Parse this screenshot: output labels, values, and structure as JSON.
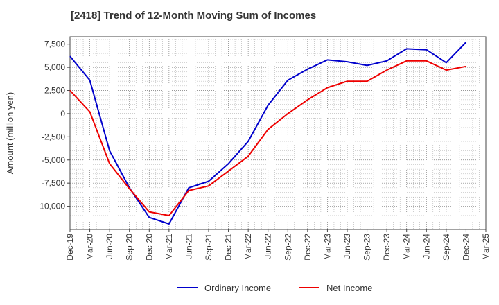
{
  "chart_data": {
    "type": "line",
    "title": "[2418]  Trend of 12-Month Moving Sum of Incomes",
    "ylabel": "Amount (million yen)",
    "xlabel": "",
    "categories": [
      "Dec-19",
      "Mar-20",
      "Jun-20",
      "Sep-20",
      "Dec-20",
      "Mar-21",
      "Jun-21",
      "Sep-21",
      "Dec-21",
      "Mar-22",
      "Jun-22",
      "Sep-22",
      "Dec-22",
      "Mar-23",
      "Jun-23",
      "Sep-23",
      "Dec-23",
      "Mar-24",
      "Jun-24",
      "Sep-24",
      "Dec-24",
      "Mar-25"
    ],
    "ylim": [
      -12500,
      8300
    ],
    "yticks": [
      -10000,
      -7500,
      -5000,
      -2500,
      0,
      2500,
      5000,
      7500
    ],
    "ytick_labels": [
      "-10,000",
      "-7,500",
      "-5,000",
      "-2,500",
      "0",
      "2,500",
      "5,000",
      "7,500"
    ],
    "grid": true,
    "legend_position": "bottom",
    "series": [
      {
        "name": "Ordinary Income",
        "color": "#0000cc",
        "values": [
          6200,
          3600,
          -4000,
          -8000,
          -11200,
          -11900,
          -8000,
          -7300,
          -5400,
          -3000,
          900,
          3600,
          4800,
          5800,
          5600,
          5200,
          5700,
          7000,
          6900,
          5500,
          7700,
          null
        ]
      },
      {
        "name": "Net Income",
        "color": "#ee0000",
        "values": [
          2500,
          200,
          -5400,
          -8100,
          -10600,
          -11000,
          -8300,
          -7800,
          -6200,
          -4600,
          -1700,
          0,
          1500,
          2800,
          3500,
          3500,
          4700,
          5700,
          5700,
          4700,
          5100,
          null
        ]
      }
    ]
  }
}
